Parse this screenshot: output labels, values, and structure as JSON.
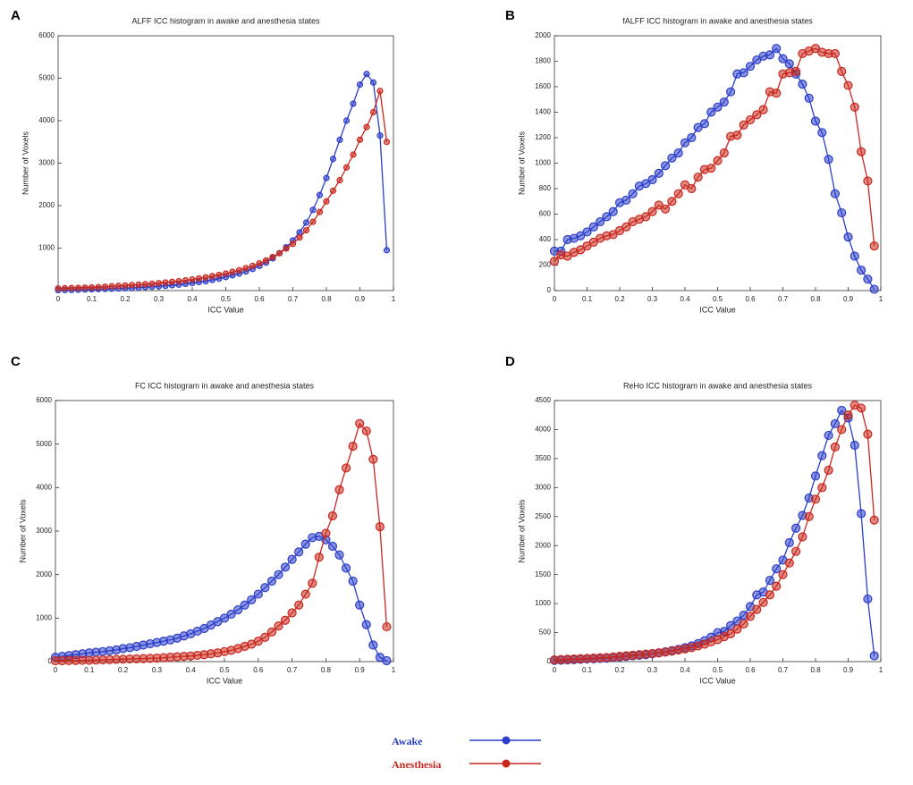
{
  "chart_data": [
    {
      "type": "line",
      "panel": "A",
      "title": "ALFF ICC histogram in awake and anesthesia states",
      "xlabel": "ICC Value",
      "ylabel": "Number of Voxels",
      "x": [
        0,
        0.02,
        0.04,
        0.06,
        0.08,
        0.1,
        0.12,
        0.14,
        0.16,
        0.18,
        0.2,
        0.22,
        0.24,
        0.26,
        0.28,
        0.3,
        0.32,
        0.34,
        0.36,
        0.38,
        0.4,
        0.42,
        0.44,
        0.46,
        0.48,
        0.5,
        0.52,
        0.54,
        0.56,
        0.58,
        0.6,
        0.62,
        0.64,
        0.66,
        0.68,
        0.7,
        0.72,
        0.74,
        0.76,
        0.78,
        0.8,
        0.82,
        0.84,
        0.86,
        0.88,
        0.9,
        0.92,
        0.94,
        0.96,
        0.98
      ],
      "series": [
        {
          "name": "Awake",
          "color": "#2b3ec9",
          "values": [
            10,
            12,
            15,
            20,
            25,
            30,
            35,
            40,
            45,
            50,
            55,
            60,
            70,
            80,
            90,
            100,
            110,
            125,
            140,
            160,
            180,
            200,
            220,
            250,
            280,
            320,
            360,
            400,
            450,
            510,
            580,
            660,
            760,
            880,
            1020,
            1180,
            1370,
            1600,
            1900,
            2250,
            2650,
            3100,
            3550,
            4000,
            4400,
            4850,
            5100,
            4900,
            3650,
            950
          ]
        },
        {
          "name": "Anesthesia",
          "color": "#c8281e",
          "values": [
            50,
            55,
            60,
            65,
            70,
            75,
            80,
            90,
            100,
            110,
            120,
            130,
            140,
            150,
            160,
            175,
            190,
            205,
            220,
            240,
            260,
            285,
            310,
            340,
            370,
            400,
            440,
            480,
            530,
            580,
            640,
            710,
            790,
            880,
            990,
            1100,
            1250,
            1420,
            1620,
            1850,
            2100,
            2350,
            2600,
            2900,
            3200,
            3550,
            3850,
            4200,
            4700,
            3500
          ]
        }
      ],
      "xlim": [
        0,
        1
      ],
      "xticks": [
        0,
        0.1,
        0.2,
        0.3,
        0.4,
        0.5,
        0.6,
        0.7,
        0.8,
        0.9,
        1
      ],
      "ylim": [
        0,
        6000
      ],
      "yticks": [
        1000,
        2000,
        3000,
        4000,
        5000,
        6000
      ]
    },
    {
      "type": "line",
      "panel": "B",
      "title": "fALFF ICC histogram in awake and anesthesia states",
      "xlabel": "ICC Value",
      "ylabel": "Number of Voxels",
      "x": [
        0,
        0.02,
        0.04,
        0.06,
        0.08,
        0.1,
        0.12,
        0.14,
        0.16,
        0.18,
        0.2,
        0.22,
        0.24,
        0.26,
        0.28,
        0.3,
        0.32,
        0.34,
        0.36,
        0.38,
        0.4,
        0.42,
        0.44,
        0.46,
        0.48,
        0.5,
        0.52,
        0.54,
        0.56,
        0.58,
        0.6,
        0.62,
        0.64,
        0.66,
        0.68,
        0.7,
        0.72,
        0.74,
        0.76,
        0.78,
        0.8,
        0.82,
        0.84,
        0.86,
        0.88,
        0.9,
        0.92,
        0.94,
        0.96,
        0.98
      ],
      "series": [
        {
          "name": "Awake",
          "color": "#2b3ec9",
          "values": [
            310,
            310,
            400,
            410,
            430,
            460,
            500,
            540,
            580,
            620,
            690,
            710,
            760,
            820,
            840,
            870,
            920,
            980,
            1040,
            1080,
            1160,
            1200,
            1280,
            1310,
            1400,
            1440,
            1480,
            1560,
            1700,
            1710,
            1760,
            1810,
            1840,
            1850,
            1900,
            1820,
            1780,
            1700,
            1620,
            1510,
            1330,
            1240,
            1030,
            760,
            610,
            420,
            270,
            160,
            90,
            10
          ]
        },
        {
          "name": "Anesthesia",
          "color": "#c8281e",
          "values": [
            230,
            280,
            270,
            300,
            320,
            350,
            380,
            410,
            430,
            440,
            470,
            500,
            540,
            560,
            580,
            620,
            670,
            640,
            700,
            760,
            830,
            800,
            890,
            950,
            960,
            1020,
            1080,
            1210,
            1220,
            1300,
            1340,
            1380,
            1420,
            1560,
            1550,
            1700,
            1710,
            1720,
            1860,
            1880,
            1900,
            1870,
            1860,
            1860,
            1720,
            1610,
            1440,
            1090,
            860,
            350
          ]
        }
      ],
      "xlim": [
        0,
        1
      ],
      "xticks": [
        0,
        0.1,
        0.2,
        0.3,
        0.4,
        0.5,
        0.6,
        0.7,
        0.8,
        0.9,
        1
      ],
      "ylim": [
        0,
        2000
      ],
      "yticks": [
        0,
        200,
        400,
        600,
        800,
        1000,
        1200,
        1400,
        1600,
        1800,
        2000
      ]
    },
    {
      "type": "line",
      "panel": "C",
      "title": "FC ICC histogram in awake and anesthesia states",
      "xlabel": "ICC Value",
      "ylabel": "Number of Voxels",
      "x": [
        0,
        0.02,
        0.04,
        0.06,
        0.08,
        0.1,
        0.12,
        0.14,
        0.16,
        0.18,
        0.2,
        0.22,
        0.24,
        0.26,
        0.28,
        0.3,
        0.32,
        0.34,
        0.36,
        0.38,
        0.4,
        0.42,
        0.44,
        0.46,
        0.48,
        0.5,
        0.52,
        0.54,
        0.56,
        0.58,
        0.6,
        0.62,
        0.64,
        0.66,
        0.68,
        0.7,
        0.72,
        0.74,
        0.76,
        0.78,
        0.8,
        0.82,
        0.84,
        0.86,
        0.88,
        0.9,
        0.92,
        0.94,
        0.96,
        0.98
      ],
      "series": [
        {
          "name": "Awake",
          "color": "#2b3ec9",
          "values": [
            100,
            120,
            140,
            160,
            180,
            200,
            215,
            230,
            250,
            270,
            300,
            320,
            350,
            380,
            410,
            440,
            470,
            500,
            540,
            590,
            640,
            700,
            760,
            840,
            920,
            1000,
            1090,
            1190,
            1300,
            1420,
            1550,
            1700,
            1850,
            2000,
            2170,
            2350,
            2520,
            2700,
            2850,
            2880,
            2800,
            2650,
            2450,
            2150,
            1850,
            1300,
            850,
            380,
            100,
            20
          ]
        },
        {
          "name": "Anesthesia",
          "color": "#c8281e",
          "values": [
            20,
            20,
            25,
            25,
            30,
            30,
            35,
            40,
            45,
            50,
            55,
            60,
            65,
            70,
            75,
            80,
            90,
            100,
            110,
            120,
            130,
            145,
            160,
            180,
            200,
            230,
            260,
            300,
            350,
            400,
            470,
            560,
            680,
            820,
            950,
            1120,
            1300,
            1550,
            1800,
            2400,
            2950,
            3350,
            3950,
            4450,
            4950,
            5470,
            5300,
            4650,
            3100,
            800
          ]
        }
      ],
      "xlim": [
        0,
        1
      ],
      "xticks": [
        0,
        0.1,
        0.2,
        0.3,
        0.4,
        0.5,
        0.6,
        0.7,
        0.8,
        0.9,
        1
      ],
      "ylim": [
        0,
        6000
      ],
      "yticks": [
        0,
        1000,
        2000,
        3000,
        4000,
        5000,
        6000
      ]
    },
    {
      "type": "line",
      "panel": "D",
      "title": "ReHo ICC histogram in awake and anesthesia states",
      "xlabel": "ICC Value",
      "ylabel": "Number of Voxels",
      "x": [
        0,
        0.02,
        0.04,
        0.06,
        0.08,
        0.1,
        0.12,
        0.14,
        0.16,
        0.18,
        0.2,
        0.22,
        0.24,
        0.26,
        0.28,
        0.3,
        0.32,
        0.34,
        0.36,
        0.38,
        0.4,
        0.42,
        0.44,
        0.46,
        0.48,
        0.5,
        0.52,
        0.54,
        0.56,
        0.58,
        0.6,
        0.62,
        0.64,
        0.66,
        0.68,
        0.7,
        0.72,
        0.74,
        0.76,
        0.78,
        0.8,
        0.82,
        0.84,
        0.86,
        0.88,
        0.9,
        0.92,
        0.94,
        0.96,
        0.98
      ],
      "series": [
        {
          "name": "Awake",
          "color": "#2b3ec9",
          "values": [
            20,
            25,
            30,
            35,
            40,
            45,
            50,
            55,
            60,
            70,
            80,
            90,
            100,
            110,
            120,
            135,
            150,
            170,
            190,
            210,
            240,
            270,
            310,
            360,
            420,
            500,
            520,
            620,
            700,
            800,
            950,
            1150,
            1200,
            1400,
            1600,
            1750,
            2050,
            2300,
            2520,
            2820,
            3200,
            3550,
            3900,
            4100,
            4330,
            4200,
            3730,
            2550,
            1080,
            100
          ]
        },
        {
          "name": "Anesthesia",
          "color": "#c8281e",
          "values": [
            30,
            35,
            40,
            45,
            50,
            55,
            60,
            65,
            70,
            80,
            90,
            100,
            110,
            120,
            130,
            140,
            150,
            165,
            180,
            200,
            220,
            240,
            270,
            300,
            340,
            380,
            430,
            480,
            560,
            650,
            780,
            900,
            1020,
            1150,
            1300,
            1500,
            1700,
            1900,
            2150,
            2500,
            2800,
            3000,
            3300,
            3700,
            4000,
            4250,
            4420,
            4370,
            3920,
            2440
          ]
        }
      ],
      "xlim": [
        0,
        1
      ],
      "xticks": [
        0,
        0.1,
        0.2,
        0.3,
        0.4,
        0.5,
        0.6,
        0.7,
        0.8,
        0.9,
        1
      ],
      "ylim": [
        0,
        4500
      ],
      "yticks": [
        0,
        500,
        1000,
        1500,
        2000,
        2500,
        3000,
        3500,
        4000,
        4500
      ]
    }
  ]
}
